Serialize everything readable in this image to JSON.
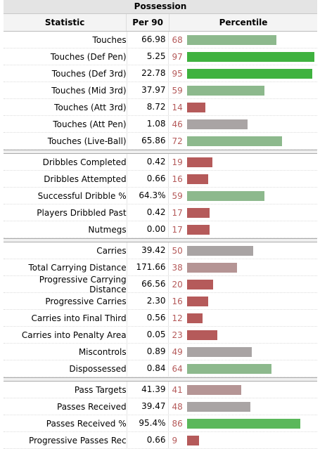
{
  "title": "Possession",
  "headers": {
    "stat": "Statistic",
    "per90": "Per 90",
    "percentile": "Percentile"
  },
  "colors": {
    "high": "#3fb23f",
    "mid": "#8db98d",
    "neutral": "#a9a4a4",
    "lowmid": "#b59595",
    "low": "#b55a5a"
  },
  "groups": [
    [
      {
        "stat": "Touches",
        "per90": "66.98",
        "pct": 68,
        "color": "#8db98d"
      },
      {
        "stat": "Touches (Def Pen)",
        "per90": "5.25",
        "pct": 97,
        "color": "#3fb23f"
      },
      {
        "stat": "Touches (Def 3rd)",
        "per90": "22.78",
        "pct": 95,
        "color": "#3fb23f"
      },
      {
        "stat": "Touches (Mid 3rd)",
        "per90": "37.97",
        "pct": 59,
        "color": "#8db98d"
      },
      {
        "stat": "Touches (Att 3rd)",
        "per90": "8.72",
        "pct": 14,
        "color": "#b55a5a"
      },
      {
        "stat": "Touches (Att Pen)",
        "per90": "1.08",
        "pct": 46,
        "color": "#a9a4a4"
      },
      {
        "stat": "Touches (Live-Ball)",
        "per90": "65.86",
        "pct": 72,
        "color": "#8db98d"
      }
    ],
    [
      {
        "stat": "Dribbles Completed",
        "per90": "0.42",
        "pct": 19,
        "color": "#b55a5a"
      },
      {
        "stat": "Dribbles Attempted",
        "per90": "0.66",
        "pct": 16,
        "color": "#b55a5a"
      },
      {
        "stat": "Successful Dribble %",
        "per90": "64.3%",
        "pct": 59,
        "color": "#8db98d"
      },
      {
        "stat": "Players Dribbled Past",
        "per90": "0.42",
        "pct": 17,
        "color": "#b55a5a"
      },
      {
        "stat": "Nutmegs",
        "per90": "0.00",
        "pct": 17,
        "color": "#b55a5a"
      }
    ],
    [
      {
        "stat": "Carries",
        "per90": "39.42",
        "pct": 50,
        "color": "#a9a4a4"
      },
      {
        "stat": "Total Carrying Distance",
        "per90": "171.66",
        "pct": 38,
        "color": "#b59595"
      },
      {
        "stat": "Progressive Carrying Distance",
        "per90": "66.56",
        "pct": 20,
        "color": "#b55a5a"
      },
      {
        "stat": "Progressive Carries",
        "per90": "2.30",
        "pct": 16,
        "color": "#b55a5a"
      },
      {
        "stat": "Carries into Final Third",
        "per90": "0.56",
        "pct": 12,
        "color": "#b55a5a"
      },
      {
        "stat": "Carries into Penalty Area",
        "per90": "0.05",
        "pct": 23,
        "color": "#b55a5a"
      },
      {
        "stat": "Miscontrols",
        "per90": "0.89",
        "pct": 49,
        "color": "#a9a4a4"
      },
      {
        "stat": "Dispossessed",
        "per90": "0.84",
        "pct": 64,
        "color": "#8db98d"
      }
    ],
    [
      {
        "stat": "Pass Targets",
        "per90": "41.39",
        "pct": 41,
        "color": "#b59595"
      },
      {
        "stat": "Passes Received",
        "per90": "39.47",
        "pct": 48,
        "color": "#a9a4a4"
      },
      {
        "stat": "Passes Received %",
        "per90": "95.4%",
        "pct": 86,
        "color": "#5bb85b"
      },
      {
        "stat": "Progressive Passes Rec",
        "per90": "0.66",
        "pct": 9,
        "color": "#b55a5a"
      }
    ]
  ]
}
